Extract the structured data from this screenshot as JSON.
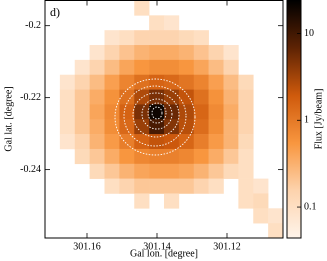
{
  "chart_data": {
    "type": "heatmap",
    "panel_label": "d)",
    "x_label": "Gal lon. [degree]",
    "y_label": "Gal lat. [degree]",
    "colorbar_label": "Flux [Jy/beam]",
    "xlim": [
      301.172,
      301.104
    ],
    "xticks": [
      301.16,
      301.14,
      301.12
    ],
    "ylim": [
      -0.259,
      -0.193
    ],
    "yticks": [
      -0.2,
      -0.22,
      -0.24
    ],
    "clim": [
      0.044,
      24
    ],
    "cticks": [
      10,
      1,
      0.1
    ],
    "color_scale": "log",
    "colors": [
      "#fff4ea",
      "#fdd3ad",
      "#f8963f",
      "#cf5a0c",
      "#5e2304",
      "#000000"
    ],
    "values": [
      [
        null,
        null,
        null,
        null,
        null,
        null,
        0.1,
        null,
        null,
        null,
        null,
        null,
        null,
        null,
        null,
        null
      ],
      [
        null,
        null,
        null,
        null,
        null,
        null,
        null,
        0.1,
        0.08,
        null,
        null,
        null,
        null,
        null,
        null,
        null
      ],
      [
        null,
        null,
        null,
        null,
        0.08,
        0.1,
        0.15,
        0.15,
        0.15,
        0.12,
        0.1,
        null,
        null,
        null,
        null,
        null
      ],
      [
        null,
        null,
        null,
        0.08,
        0.15,
        0.22,
        0.3,
        0.35,
        0.35,
        0.3,
        0.22,
        0.15,
        0.08,
        null,
        null,
        null
      ],
      [
        null,
        null,
        0.08,
        0.15,
        0.25,
        0.4,
        0.55,
        0.65,
        0.65,
        0.55,
        0.4,
        0.25,
        0.15,
        null,
        null,
        null
      ],
      [
        null,
        0.08,
        0.15,
        0.25,
        0.45,
        0.8,
        1.2,
        1.6,
        1.4,
        1.1,
        0.8,
        0.45,
        0.25,
        0.12,
        null,
        null
      ],
      [
        null,
        0.1,
        0.2,
        0.35,
        0.6,
        1.2,
        2.8,
        5,
        3.5,
        2.2,
        1.2,
        0.6,
        0.3,
        0.15,
        null,
        null
      ],
      [
        null,
        0.1,
        0.2,
        0.4,
        0.7,
        1.6,
        5,
        20,
        6,
        2.8,
        1.5,
        0.7,
        0.35,
        0.15,
        null,
        null
      ],
      [
        null,
        0.1,
        0.2,
        0.35,
        0.65,
        1.4,
        3.5,
        9,
        4.5,
        2.5,
        1.3,
        0.65,
        0.3,
        0.15,
        null,
        null
      ],
      [
        null,
        0.08,
        0.15,
        0.3,
        0.5,
        0.9,
        1.6,
        2.2,
        2,
        1.5,
        0.9,
        0.5,
        0.3,
        0.12,
        null,
        null
      ],
      [
        null,
        null,
        0.12,
        0.2,
        0.35,
        0.55,
        0.75,
        0.85,
        0.85,
        0.75,
        0.55,
        0.35,
        0.2,
        0.1,
        null,
        null
      ],
      [
        null,
        null,
        null,
        0.12,
        0.2,
        0.3,
        0.4,
        0.45,
        0.45,
        0.4,
        0.3,
        0.2,
        0.12,
        0.1,
        null,
        null
      ],
      [
        null,
        null,
        null,
        null,
        0.1,
        0.15,
        0.2,
        0.2,
        0.2,
        0.2,
        0.15,
        0.1,
        null,
        0.1,
        0.08,
        null
      ],
      [
        null,
        null,
        null,
        null,
        null,
        null,
        0.1,
        null,
        0.1,
        null,
        null,
        null,
        null,
        0.1,
        0.12,
        null
      ],
      [
        null,
        null,
        null,
        null,
        null,
        null,
        null,
        null,
        null,
        null,
        null,
        null,
        null,
        null,
        0.1,
        0.08
      ],
      [
        null,
        null,
        null,
        null,
        null,
        null,
        null,
        null,
        null,
        null,
        null,
        null,
        null,
        null,
        null,
        0.1
      ]
    ]
  }
}
